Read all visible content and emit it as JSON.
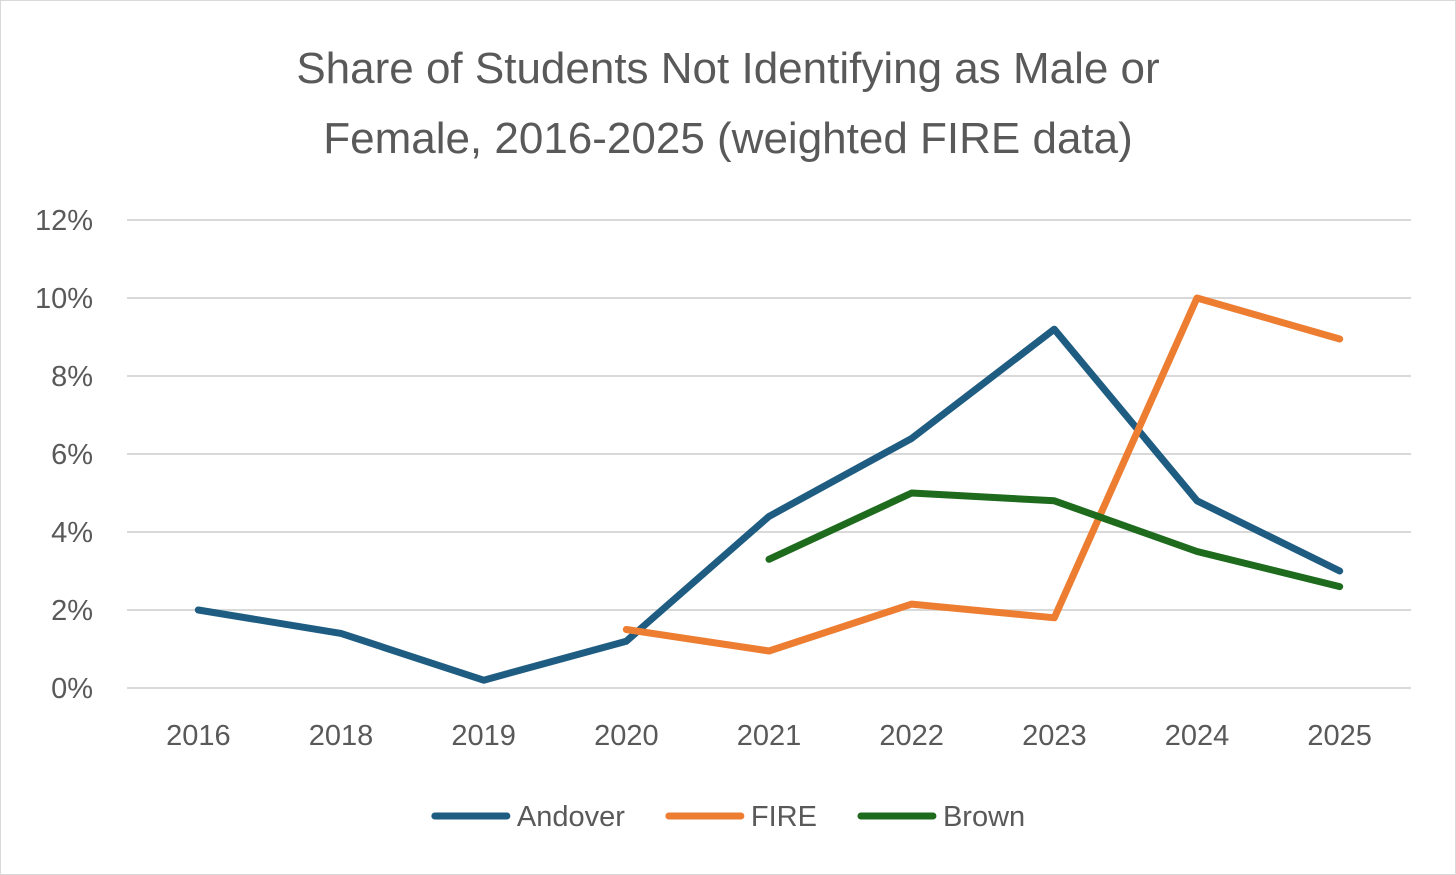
{
  "chart_data": {
    "type": "line",
    "title": "Share of Students Not Identifying as Male or Female, 2016-2025 (weighted FIRE data)",
    "title_lines": [
      "Share of Students Not Identifying as Male or",
      "Female, 2016-2025 (weighted FIRE data)"
    ],
    "categories": [
      "2016",
      "2018",
      "2019",
      "2020",
      "2021",
      "2022",
      "2023",
      "2024",
      "2025"
    ],
    "y_ticks": [
      "0%",
      "2%",
      "4%",
      "6%",
      "8%",
      "10%",
      "12%"
    ],
    "ylim": [
      0,
      12
    ],
    "y_unit": "%",
    "grid": true,
    "legend_position": "bottom",
    "series": [
      {
        "name": "Andover",
        "color": "#1f5c82",
        "values": [
          2.0,
          1.4,
          0.2,
          1.2,
          4.4,
          6.4,
          9.2,
          4.8,
          3.0
        ]
      },
      {
        "name": "FIRE",
        "color": "#ed7d31",
        "values": [
          null,
          null,
          null,
          1.5,
          0.95,
          2.15,
          1.8,
          10.0,
          8.95
        ]
      },
      {
        "name": "Brown",
        "color": "#1e6b1e",
        "values": [
          null,
          null,
          null,
          null,
          3.3,
          5.0,
          4.8,
          3.5,
          2.6
        ]
      }
    ]
  }
}
